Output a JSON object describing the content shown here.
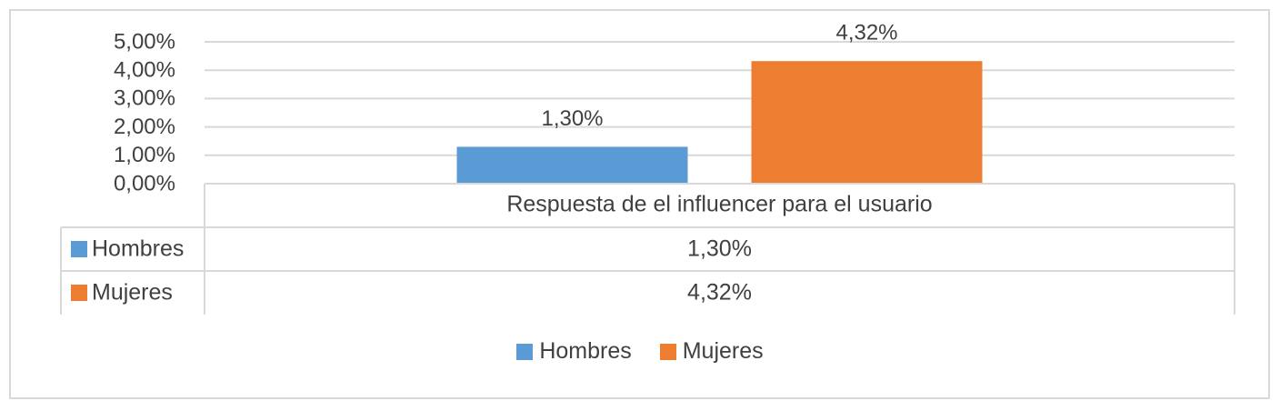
{
  "chart_data": {
    "type": "bar",
    "categories": [
      "Respuesta de el influencer para el usuario"
    ],
    "series": [
      {
        "name": "Hombres",
        "values": [
          1.3
        ],
        "color": "#5b9bd5",
        "label": "1,30%"
      },
      {
        "name": "Mujeres",
        "values": [
          4.32
        ],
        "color": "#ed7d31",
        "label": "4,32%"
      }
    ],
    "ylim": [
      0,
      5
    ],
    "yticks": [
      "0,00%",
      "1,00%",
      "2,00%",
      "3,00%",
      "4,00%",
      "5,00%"
    ],
    "grid": true,
    "legend_position": "bottom",
    "data_table": true
  },
  "legend": {
    "items": [
      {
        "name": "Hombres",
        "color": "#5b9bd5"
      },
      {
        "name": "Mujeres",
        "color": "#ed7d31"
      }
    ]
  }
}
